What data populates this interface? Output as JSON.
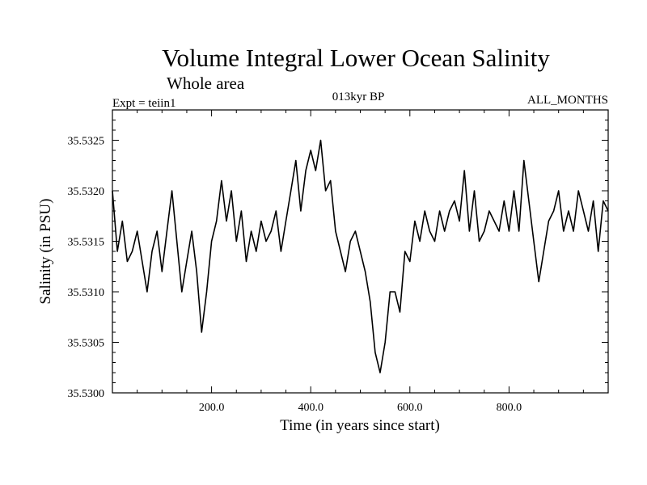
{
  "chart_data": {
    "type": "line",
    "title": "Volume Integral Lower Ocean Salinity",
    "subtitle": "Whole area",
    "experiment_label": "Expt = teiin1",
    "period_label": "013kyr BP",
    "months_label": "ALL_MONTHS",
    "xlabel": "Time (in years since start)",
    "ylabel": "Salinity (in PSU)",
    "xlim": [
      0,
      1000
    ],
    "ylim": [
      35.53,
      35.5328
    ],
    "x_ticks": [
      200,
      400,
      600,
      800
    ],
    "x_tick_labels": [
      "200.0",
      "400.0",
      "600.0",
      "800.0"
    ],
    "y_ticks": [
      35.53,
      35.5305,
      35.531,
      35.5315,
      35.532,
      35.5325
    ],
    "y_tick_labels": [
      "35.5300",
      "35.5305",
      "35.5310",
      "35.5315",
      "35.5320",
      "35.5325"
    ],
    "grid": false,
    "line_color": "#000000",
    "series": [
      {
        "x": [
          0,
          10,
          20,
          30,
          40,
          50,
          60,
          70,
          80,
          90,
          100,
          110,
          120,
          130,
          140,
          150,
          160,
          170,
          180,
          190,
          200,
          210,
          220,
          230,
          240,
          250,
          260,
          270,
          280,
          290,
          300,
          310,
          320,
          330,
          340,
          350,
          360,
          370,
          380,
          390,
          400,
          410,
          420,
          430,
          440,
          450,
          460,
          470,
          480,
          490,
          500,
          510,
          520,
          530,
          540,
          550,
          560,
          570,
          580,
          590,
          600,
          610,
          620,
          630,
          640,
          650,
          660,
          670,
          680,
          690,
          700,
          710,
          720,
          730,
          740,
          750,
          760,
          770,
          780,
          790,
          800,
          810,
          820,
          830,
          840,
          850,
          860,
          870,
          880,
          890,
          900,
          910,
          920,
          930,
          940,
          950,
          960,
          970,
          980,
          990,
          1000
        ],
        "y": [
          35.532,
          35.5314,
          35.5317,
          35.5313,
          35.5314,
          35.5316,
          35.5313,
          35.531,
          35.5314,
          35.5316,
          35.5312,
          35.5316,
          35.532,
          35.5315,
          35.531,
          35.5313,
          35.5316,
          35.5312,
          35.5306,
          35.531,
          35.5315,
          35.5317,
          35.5321,
          35.5317,
          35.532,
          35.5315,
          35.5318,
          35.5313,
          35.5316,
          35.5314,
          35.5317,
          35.5315,
          35.5316,
          35.5318,
          35.5314,
          35.5317,
          35.532,
          35.5323,
          35.5318,
          35.5322,
          35.5324,
          35.5322,
          35.5325,
          35.532,
          35.5321,
          35.5316,
          35.5314,
          35.5312,
          35.5315,
          35.5316,
          35.5314,
          35.5312,
          35.5309,
          35.5304,
          35.5302,
          35.5305,
          35.531,
          35.531,
          35.5308,
          35.5314,
          35.5313,
          35.5317,
          35.5315,
          35.5318,
          35.5316,
          35.5315,
          35.5318,
          35.5316,
          35.5318,
          35.5319,
          35.5317,
          35.5322,
          35.5316,
          35.532,
          35.5315,
          35.5316,
          35.5318,
          35.5317,
          35.5316,
          35.5319,
          35.5316,
          35.532,
          35.5316,
          35.5323,
          35.5319,
          35.5315,
          35.5311,
          35.5314,
          35.5317,
          35.5318,
          35.532,
          35.5316,
          35.5318,
          35.5316,
          35.532,
          35.5318,
          35.5316,
          35.5319,
          35.5314,
          35.5319,
          35.5318
        ]
      }
    ]
  }
}
